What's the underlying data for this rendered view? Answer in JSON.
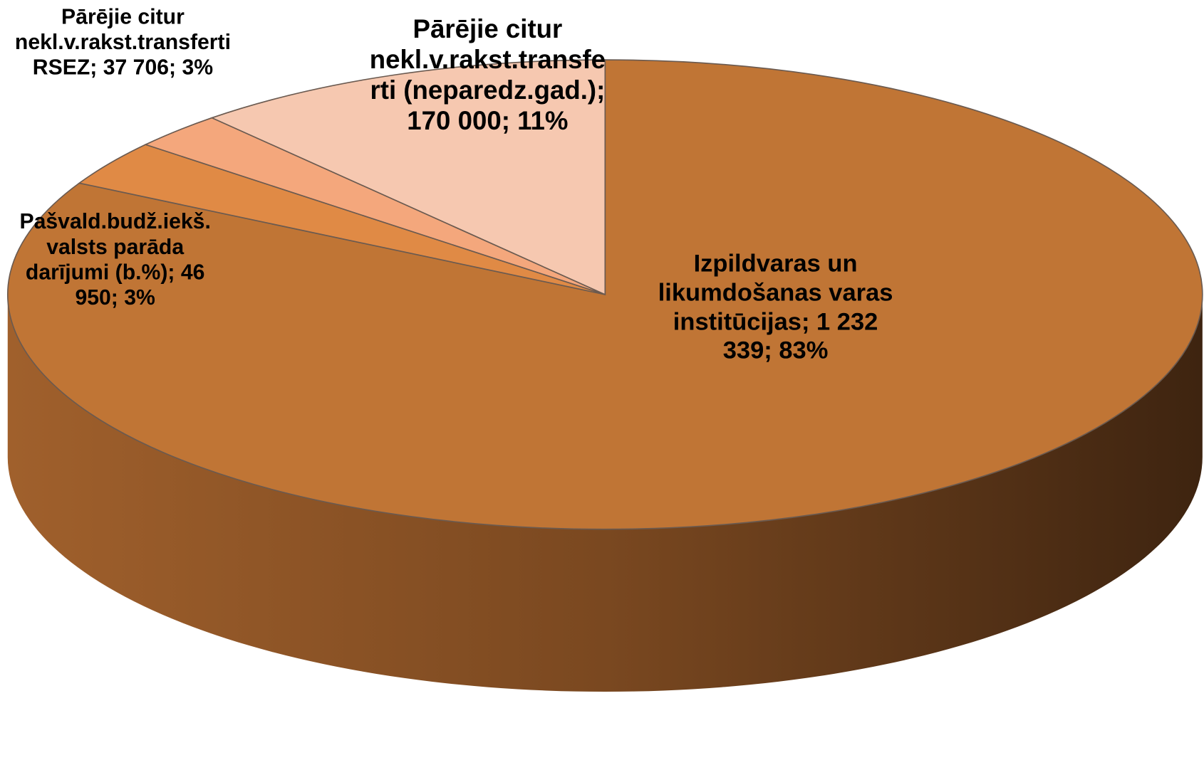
{
  "chart_data": {
    "type": "pie3d",
    "categories": [
      "Izpildvaras un likumdošanas varas institūcijas",
      "Pašvald.budž.iekš. valsts parāda darījumi (b.%)",
      "Pārējie citur nekl.v.rakst.transferti RSEZ",
      "Pārējie citur nekl.v.rakst.transferti (neparedz.gad.)"
    ],
    "values": [
      1232339,
      46950,
      37706,
      170000
    ],
    "value_labels": [
      "1 232 339",
      "46 950",
      "37 706",
      "170 000"
    ],
    "percentages": [
      83,
      3,
      3,
      11
    ],
    "percentage_labels": [
      "83%",
      "3%",
      "3%",
      "11%"
    ],
    "label_separator": "; ",
    "colors": [
      "#c07535",
      "#e08a45",
      "#f4a77c",
      "#f6c8b0"
    ]
  }
}
